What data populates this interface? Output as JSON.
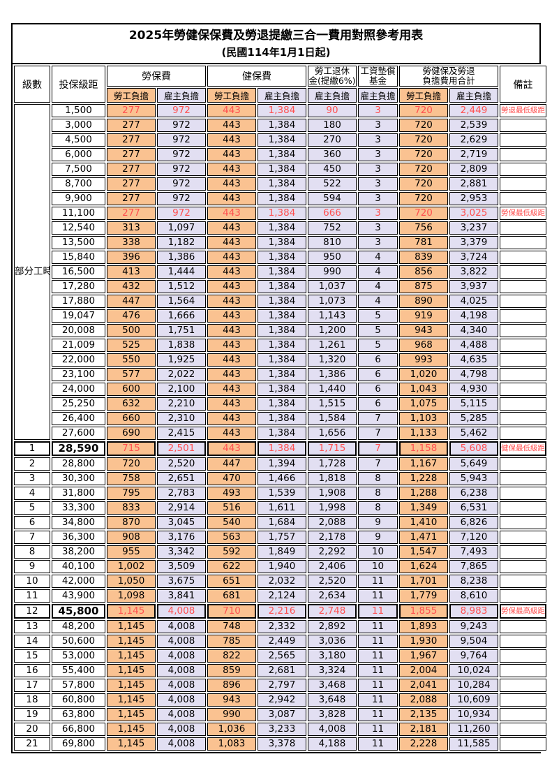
{
  "title": "2025年勞健保保費及勞退提繳三合一費用對照參考用表",
  "subtitle": "(民國114年1月1日起)",
  "colors": {
    "employee_bg": "#fac291",
    "employer_bg": "#e2dff2",
    "highlight_text": "#ff5050",
    "border": "#000000",
    "background": "#ffffff"
  },
  "header": {
    "level": "級數",
    "bracket": "投保級距",
    "labor_insurance": "勞保費",
    "health_insurance": "健保費",
    "pension_line1": "勞工退休",
    "pension_line2": "金(提繳6%)",
    "wage_fund_line1": "工資墊償",
    "wage_fund_line2": "基金",
    "total_line1": "勞健保及勞退",
    "total_line2": "負擔費用合計",
    "remark": "備註",
    "employee_share": "勞工負擔",
    "employer_share": "雇主負擔"
  },
  "part_time_label": "部分工時",
  "table": {
    "value_columns": [
      "labor_employee",
      "labor_employer",
      "health_employee",
      "health_employer",
      "pension_employer",
      "wage_fund_employer",
      "total_employee",
      "total_employer"
    ],
    "rows": [
      {
        "level": "",
        "group": "part",
        "bracket": "1,500",
        "values": [
          "277",
          "972",
          "443",
          "1,384",
          "90",
          "3",
          "720",
          "2,449"
        ],
        "remark": "勞退最低級距",
        "highlight": true,
        "thick": false,
        "bold_bracket": false
      },
      {
        "level": "",
        "group": "part",
        "bracket": "3,000",
        "values": [
          "277",
          "972",
          "443",
          "1,384",
          "180",
          "3",
          "720",
          "2,539"
        ],
        "remark": "",
        "highlight": false,
        "thick": false,
        "bold_bracket": false
      },
      {
        "level": "",
        "group": "part",
        "bracket": "4,500",
        "values": [
          "277",
          "972",
          "443",
          "1,384",
          "270",
          "3",
          "720",
          "2,629"
        ],
        "remark": "",
        "highlight": false,
        "thick": false,
        "bold_bracket": false
      },
      {
        "level": "",
        "group": "part",
        "bracket": "6,000",
        "values": [
          "277",
          "972",
          "443",
          "1,384",
          "360",
          "3",
          "720",
          "2,719"
        ],
        "remark": "",
        "highlight": false,
        "thick": false,
        "bold_bracket": false
      },
      {
        "level": "",
        "group": "part",
        "bracket": "7,500",
        "values": [
          "277",
          "972",
          "443",
          "1,384",
          "450",
          "3",
          "720",
          "2,809"
        ],
        "remark": "",
        "highlight": false,
        "thick": false,
        "bold_bracket": false
      },
      {
        "level": "",
        "group": "part",
        "bracket": "8,700",
        "values": [
          "277",
          "972",
          "443",
          "1,384",
          "522",
          "3",
          "720",
          "2,881"
        ],
        "remark": "",
        "highlight": false,
        "thick": false,
        "bold_bracket": false
      },
      {
        "level": "",
        "group": "part",
        "bracket": "9,900",
        "values": [
          "277",
          "972",
          "443",
          "1,384",
          "594",
          "3",
          "720",
          "2,953"
        ],
        "remark": "",
        "highlight": false,
        "thick": false,
        "bold_bracket": false
      },
      {
        "level": "",
        "group": "part",
        "bracket": "11,100",
        "values": [
          "277",
          "972",
          "443",
          "1,384",
          "666",
          "3",
          "720",
          "3,025"
        ],
        "remark": "勞保最低級距",
        "highlight": true,
        "thick": false,
        "bold_bracket": false
      },
      {
        "level": "",
        "group": "part",
        "bracket": "12,540",
        "values": [
          "313",
          "1,097",
          "443",
          "1,384",
          "752",
          "3",
          "756",
          "3,237"
        ],
        "remark": "",
        "highlight": false,
        "thick": false,
        "bold_bracket": false
      },
      {
        "level": "",
        "group": "part",
        "bracket": "13,500",
        "values": [
          "338",
          "1,182",
          "443",
          "1,384",
          "810",
          "3",
          "781",
          "3,379"
        ],
        "remark": "",
        "highlight": false,
        "thick": false,
        "bold_bracket": false
      },
      {
        "level": "",
        "group": "part",
        "bracket": "15,840",
        "values": [
          "396",
          "1,386",
          "443",
          "1,384",
          "950",
          "4",
          "839",
          "3,724"
        ],
        "remark": "",
        "highlight": false,
        "thick": false,
        "bold_bracket": false
      },
      {
        "level": "",
        "group": "part",
        "bracket": "16,500",
        "values": [
          "413",
          "1,444",
          "443",
          "1,384",
          "990",
          "4",
          "856",
          "3,822"
        ],
        "remark": "",
        "highlight": false,
        "thick": false,
        "bold_bracket": false
      },
      {
        "level": "",
        "group": "part",
        "bracket": "17,280",
        "values": [
          "432",
          "1,512",
          "443",
          "1,384",
          "1,037",
          "4",
          "875",
          "3,937"
        ],
        "remark": "",
        "highlight": false,
        "thick": false,
        "bold_bracket": false
      },
      {
        "level": "",
        "group": "part",
        "bracket": "17,880",
        "values": [
          "447",
          "1,564",
          "443",
          "1,384",
          "1,073",
          "4",
          "890",
          "4,025"
        ],
        "remark": "",
        "highlight": false,
        "thick": false,
        "bold_bracket": false
      },
      {
        "level": "",
        "group": "part",
        "bracket": "19,047",
        "values": [
          "476",
          "1,666",
          "443",
          "1,384",
          "1,143",
          "5",
          "919",
          "4,198"
        ],
        "remark": "",
        "highlight": false,
        "thick": false,
        "bold_bracket": false
      },
      {
        "level": "",
        "group": "part",
        "bracket": "20,008",
        "values": [
          "500",
          "1,751",
          "443",
          "1,384",
          "1,200",
          "5",
          "943",
          "4,340"
        ],
        "remark": "",
        "highlight": false,
        "thick": false,
        "bold_bracket": false
      },
      {
        "level": "",
        "group": "part",
        "bracket": "21,009",
        "values": [
          "525",
          "1,838",
          "443",
          "1,384",
          "1,261",
          "5",
          "968",
          "4,488"
        ],
        "remark": "",
        "highlight": false,
        "thick": false,
        "bold_bracket": false
      },
      {
        "level": "",
        "group": "part",
        "bracket": "22,000",
        "values": [
          "550",
          "1,925",
          "443",
          "1,384",
          "1,320",
          "6",
          "993",
          "4,635"
        ],
        "remark": "",
        "highlight": false,
        "thick": false,
        "bold_bracket": false
      },
      {
        "level": "",
        "group": "part",
        "bracket": "23,100",
        "values": [
          "577",
          "2,022",
          "443",
          "1,384",
          "1,386",
          "6",
          "1,020",
          "4,798"
        ],
        "remark": "",
        "highlight": false,
        "thick": false,
        "bold_bracket": false
      },
      {
        "level": "",
        "group": "part",
        "bracket": "24,000",
        "values": [
          "600",
          "2,100",
          "443",
          "1,384",
          "1,440",
          "6",
          "1,043",
          "4,930"
        ],
        "remark": "",
        "highlight": false,
        "thick": false,
        "bold_bracket": false
      },
      {
        "level": "",
        "group": "part",
        "bracket": "25,250",
        "values": [
          "632",
          "2,210",
          "443",
          "1,384",
          "1,515",
          "6",
          "1,075",
          "5,115"
        ],
        "remark": "",
        "highlight": false,
        "thick": false,
        "bold_bracket": false
      },
      {
        "level": "",
        "group": "part",
        "bracket": "26,400",
        "values": [
          "660",
          "2,310",
          "443",
          "1,384",
          "1,584",
          "7",
          "1,103",
          "5,285"
        ],
        "remark": "",
        "highlight": false,
        "thick": false,
        "bold_bracket": false
      },
      {
        "level": "",
        "group": "part",
        "bracket": "27,600",
        "values": [
          "690",
          "2,415",
          "443",
          "1,384",
          "1,656",
          "7",
          "1,133",
          "5,462"
        ],
        "remark": "",
        "highlight": false,
        "thick": false,
        "bold_bracket": false
      },
      {
        "level": "1",
        "group": "num",
        "bracket": "28,590",
        "values": [
          "715",
          "2,501",
          "443",
          "1,384",
          "1,715",
          "7",
          "1,158",
          "5,608"
        ],
        "remark": "健保最低級距",
        "highlight": true,
        "thick": true,
        "bold_bracket": true
      },
      {
        "level": "2",
        "group": "num",
        "bracket": "28,800",
        "values": [
          "720",
          "2,520",
          "447",
          "1,394",
          "1,728",
          "7",
          "1,167",
          "5,649"
        ],
        "remark": "",
        "highlight": false,
        "thick": false,
        "bold_bracket": false
      },
      {
        "level": "3",
        "group": "num",
        "bracket": "30,300",
        "values": [
          "758",
          "2,651",
          "470",
          "1,466",
          "1,818",
          "8",
          "1,228",
          "5,943"
        ],
        "remark": "",
        "highlight": false,
        "thick": false,
        "bold_bracket": false
      },
      {
        "level": "4",
        "group": "num",
        "bracket": "31,800",
        "values": [
          "795",
          "2,783",
          "493",
          "1,539",
          "1,908",
          "8",
          "1,288",
          "6,238"
        ],
        "remark": "",
        "highlight": false,
        "thick": false,
        "bold_bracket": false
      },
      {
        "level": "5",
        "group": "num",
        "bracket": "33,300",
        "values": [
          "833",
          "2,914",
          "516",
          "1,611",
          "1,998",
          "8",
          "1,349",
          "6,531"
        ],
        "remark": "",
        "highlight": false,
        "thick": false,
        "bold_bracket": false
      },
      {
        "level": "6",
        "group": "num",
        "bracket": "34,800",
        "values": [
          "870",
          "3,045",
          "540",
          "1,684",
          "2,088",
          "9",
          "1,410",
          "6,826"
        ],
        "remark": "",
        "highlight": false,
        "thick": false,
        "bold_bracket": false
      },
      {
        "level": "7",
        "group": "num",
        "bracket": "36,300",
        "values": [
          "908",
          "3,176",
          "563",
          "1,757",
          "2,178",
          "9",
          "1,471",
          "7,120"
        ],
        "remark": "",
        "highlight": false,
        "thick": false,
        "bold_bracket": false
      },
      {
        "level": "8",
        "group": "num",
        "bracket": "38,200",
        "values": [
          "955",
          "3,342",
          "592",
          "1,849",
          "2,292",
          "10",
          "1,547",
          "7,493"
        ],
        "remark": "",
        "highlight": false,
        "thick": false,
        "bold_bracket": false
      },
      {
        "level": "9",
        "group": "num",
        "bracket": "40,100",
        "values": [
          "1,002",
          "3,509",
          "622",
          "1,940",
          "2,406",
          "10",
          "1,624",
          "7,865"
        ],
        "remark": "",
        "highlight": false,
        "thick": false,
        "bold_bracket": false
      },
      {
        "level": "10",
        "group": "num",
        "bracket": "42,000",
        "values": [
          "1,050",
          "3,675",
          "651",
          "2,032",
          "2,520",
          "11",
          "1,701",
          "8,238"
        ],
        "remark": "",
        "highlight": false,
        "thick": false,
        "bold_bracket": false
      },
      {
        "level": "11",
        "group": "num",
        "bracket": "43,900",
        "values": [
          "1,098",
          "3,841",
          "681",
          "2,124",
          "2,634",
          "11",
          "1,779",
          "8,610"
        ],
        "remark": "",
        "highlight": false,
        "thick": false,
        "bold_bracket": false
      },
      {
        "level": "12",
        "group": "num",
        "bracket": "45,800",
        "values": [
          "1,145",
          "4,008",
          "710",
          "2,216",
          "2,748",
          "11",
          "1,855",
          "8,983"
        ],
        "remark": "勞保最高級距",
        "highlight": true,
        "thick": true,
        "bold_bracket": true
      },
      {
        "level": "13",
        "group": "num",
        "bracket": "48,200",
        "values": [
          "1,145",
          "4,008",
          "748",
          "2,332",
          "2,892",
          "11",
          "1,893",
          "9,243"
        ],
        "remark": "",
        "highlight": false,
        "thick": false,
        "bold_bracket": false
      },
      {
        "level": "14",
        "group": "num",
        "bracket": "50,600",
        "values": [
          "1,145",
          "4,008",
          "785",
          "2,449",
          "3,036",
          "11",
          "1,930",
          "9,504"
        ],
        "remark": "",
        "highlight": false,
        "thick": false,
        "bold_bracket": false
      },
      {
        "level": "15",
        "group": "num",
        "bracket": "53,000",
        "values": [
          "1,145",
          "4,008",
          "822",
          "2,565",
          "3,180",
          "11",
          "1,967",
          "9,764"
        ],
        "remark": "",
        "highlight": false,
        "thick": false,
        "bold_bracket": false
      },
      {
        "level": "16",
        "group": "num",
        "bracket": "55,400",
        "values": [
          "1,145",
          "4,008",
          "859",
          "2,681",
          "3,324",
          "11",
          "2,004",
          "10,024"
        ],
        "remark": "",
        "highlight": false,
        "thick": false,
        "bold_bracket": false
      },
      {
        "level": "17",
        "group": "num",
        "bracket": "57,800",
        "values": [
          "1,145",
          "4,008",
          "896",
          "2,797",
          "3,468",
          "11",
          "2,041",
          "10,284"
        ],
        "remark": "",
        "highlight": false,
        "thick": false,
        "bold_bracket": false
      },
      {
        "level": "18",
        "group": "num",
        "bracket": "60,800",
        "values": [
          "1,145",
          "4,008",
          "943",
          "2,942",
          "3,648",
          "11",
          "2,088",
          "10,609"
        ],
        "remark": "",
        "highlight": false,
        "thick": false,
        "bold_bracket": false
      },
      {
        "level": "19",
        "group": "num",
        "bracket": "63,800",
        "values": [
          "1,145",
          "4,008",
          "990",
          "3,087",
          "3,828",
          "11",
          "2,135",
          "10,934"
        ],
        "remark": "",
        "highlight": false,
        "thick": false,
        "bold_bracket": false
      },
      {
        "level": "20",
        "group": "num",
        "bracket": "66,800",
        "values": [
          "1,145",
          "4,008",
          "1,036",
          "3,233",
          "4,008",
          "11",
          "2,181",
          "11,260"
        ],
        "remark": "",
        "highlight": false,
        "thick": false,
        "bold_bracket": false
      },
      {
        "level": "21",
        "group": "num",
        "bracket": "69,800",
        "values": [
          "1,145",
          "4,008",
          "1,083",
          "3,378",
          "4,188",
          "11",
          "2,228",
          "11,585"
        ],
        "remark": "",
        "highlight": false,
        "thick": false,
        "bold_bracket": false
      }
    ]
  }
}
